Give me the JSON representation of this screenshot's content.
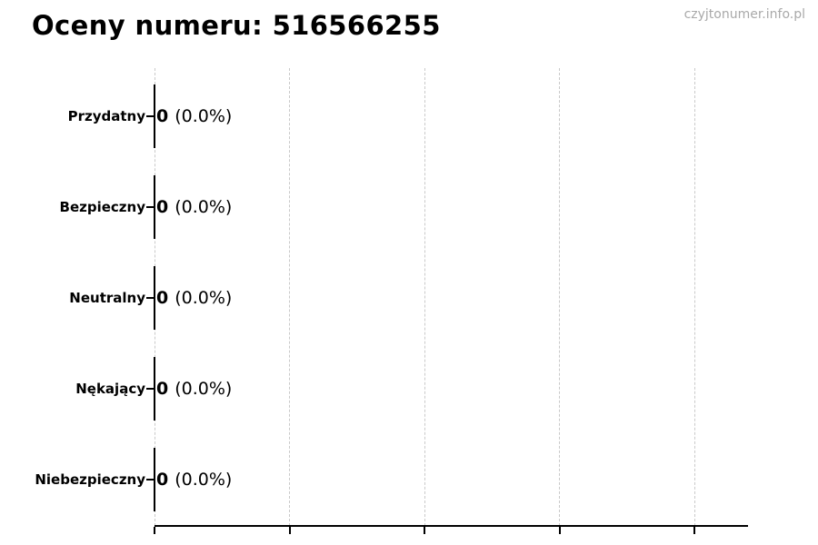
{
  "page": {
    "watermark": "czyjtonumer.info.pl",
    "background_color": "#ffffff"
  },
  "colors": {
    "text": "#000000",
    "axis": "#000000",
    "bar_edge": "#000000",
    "gridline": "#c9c9c9",
    "watermark": "#a9a9a9"
  },
  "chart_data": {
    "type": "bar",
    "orientation": "horizontal",
    "title": "Oceny numeru: 516566255",
    "watermark": "czyjtonumer.info.pl",
    "categories": [
      "Przydatny",
      "Bezpieczny",
      "Neutralny",
      "Nękający",
      "Niebezpieczny"
    ],
    "values": [
      0,
      0,
      0,
      0,
      0
    ],
    "percentages": [
      0.0,
      0.0,
      0.0,
      0.0,
      0.0
    ],
    "count_labels": [
      "0",
      "0",
      "0",
      "0",
      "0"
    ],
    "percent_labels": [
      "(0.0%)",
      "(0.0%)",
      "(0.0%)",
      "(0.0%)",
      "(0.0%)"
    ],
    "annotation_format": "count (percent%)",
    "xlabel": "",
    "ylabel": "",
    "xlim": [
      0,
      4.4
    ],
    "x_ticks_estimated": [
      0,
      1,
      2,
      3,
      4
    ],
    "x_tick_labels_visible": false,
    "grid": {
      "axis": "x",
      "style": "dashed",
      "visible": true
    },
    "legend": {
      "visible": false
    }
  }
}
